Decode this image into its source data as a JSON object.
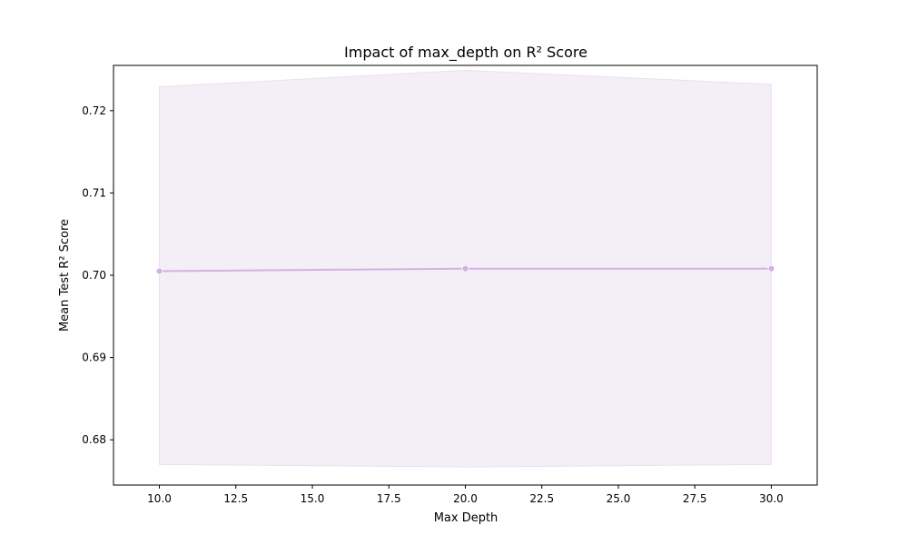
{
  "chart_data": {
    "type": "line",
    "title": "Impact of max_depth on R² Score",
    "xlabel": "Max Depth",
    "ylabel": "Mean Test R² Score",
    "xlim": [
      8.5,
      31.5
    ],
    "ylim": [
      0.6745,
      0.7255
    ],
    "x_ticks": [
      10.0,
      12.5,
      15.0,
      17.5,
      20.0,
      22.5,
      25.0,
      27.5,
      30.0
    ],
    "x_tick_labels": [
      "10.0",
      "12.5",
      "15.0",
      "17.5",
      "20.0",
      "22.5",
      "25.0",
      "27.5",
      "30.0"
    ],
    "y_ticks": [
      0.68,
      0.69,
      0.7,
      0.71,
      0.72
    ],
    "y_tick_labels": [
      "0.68",
      "0.69",
      "0.70",
      "0.71",
      "0.72"
    ],
    "grid": false,
    "series": [
      {
        "x": [
          10,
          20,
          30
        ],
        "y": [
          0.7005,
          0.7008,
          0.7008
        ],
        "band_upper": [
          0.7229,
          0.7249,
          0.7232
        ],
        "band_lower": [
          0.677,
          0.6767,
          0.677
        ],
        "color": "#d4b0e0",
        "band_color": "#f4eef6",
        "band_edge_color": "#ebdff0"
      }
    ]
  }
}
